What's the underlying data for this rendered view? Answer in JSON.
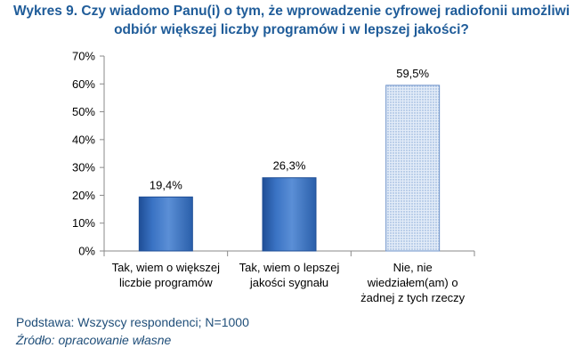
{
  "chart_title": {
    "line1": "Wykres 9. Czy wiadomo Panu(i) o tym, że wprowadzenie cyfrowej radiofonii umożliwi",
    "line2": "odbiór większej liczby programów i w lepszej jakości?"
  },
  "chart_data": {
    "type": "bar",
    "categories": [
      [
        "Tak, wiem o większej",
        "liczbie programów"
      ],
      [
        "Tak, wiem o lepszej",
        "jakości sygnału"
      ],
      [
        "Nie, nie",
        "wiedziałem(am) o",
        "żadnej z tych rzeczy"
      ]
    ],
    "values": [
      19.4,
      26.3,
      59.5
    ],
    "data_labels": [
      "19,4%",
      "26,3%",
      "59,5%"
    ],
    "ylim": [
      0,
      70
    ],
    "yticks": [
      "0%",
      "10%",
      "20%",
      "30%",
      "40%",
      "50%",
      "60%",
      "70%"
    ],
    "grid": false,
    "bar_styles": [
      "solid",
      "solid",
      "dotted"
    ]
  },
  "colors": {
    "bar_fill": "#3a73c4",
    "bar_dark": "#1f4e96",
    "bar_light": "#5b8fd6",
    "pattern_bg": "#e3ecf8",
    "pattern_dot": "#7fa3d4",
    "axis": "#8a8a8a",
    "title": "#1f5c99",
    "footer": "#1f4e79"
  },
  "footer": {
    "basis": "Podstawa: Wszyscy respondenci; N=1000",
    "source": "Źródło: opracowanie własne"
  }
}
